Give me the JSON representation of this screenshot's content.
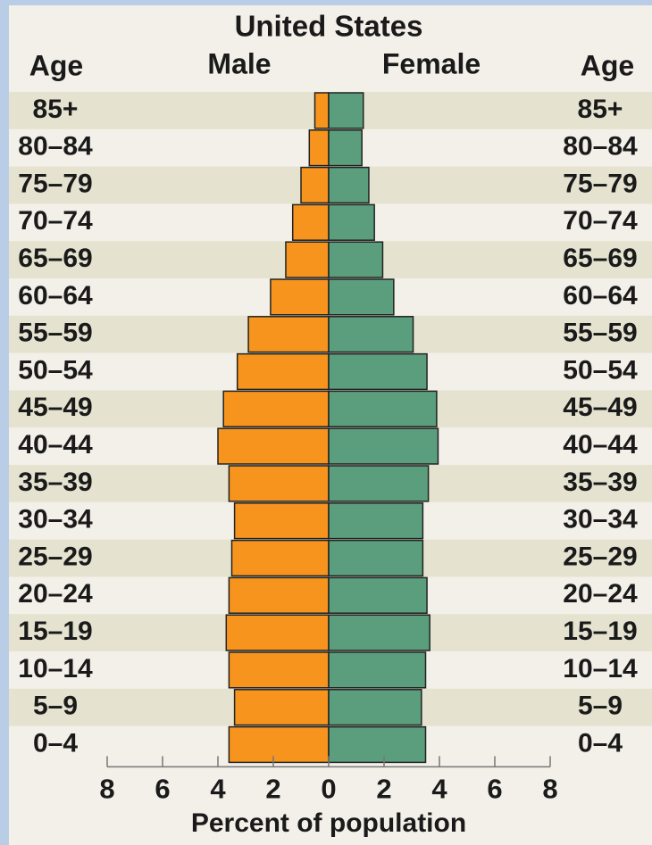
{
  "chart_data": {
    "type": "pyramid",
    "title": "United States",
    "age_label": "Age",
    "x_label": "Percent of population",
    "categories": [
      "85+",
      "80–84",
      "75–79",
      "70–74",
      "65–69",
      "60–64",
      "55–59",
      "50–54",
      "45–49",
      "40–44",
      "35–39",
      "30–34",
      "25–29",
      "20–24",
      "15–19",
      "10–14",
      "5–9",
      "0–4"
    ],
    "series": [
      {
        "name": "Male",
        "color": "#f7941d",
        "values": [
          0.5,
          0.7,
          1.0,
          1.3,
          1.55,
          2.1,
          2.9,
          3.3,
          3.8,
          4.0,
          3.6,
          3.4,
          3.5,
          3.6,
          3.7,
          3.6,
          3.4,
          3.6
        ]
      },
      {
        "name": "Female",
        "color": "#5b9e7d",
        "values": [
          1.25,
          1.2,
          1.45,
          1.65,
          1.95,
          2.35,
          3.05,
          3.55,
          3.9,
          3.95,
          3.6,
          3.4,
          3.4,
          3.55,
          3.65,
          3.5,
          3.35,
          3.5
        ]
      }
    ],
    "xlim": [
      0,
      8
    ],
    "xticks": [
      0,
      2,
      4,
      6,
      8
    ],
    "stripes": true
  }
}
